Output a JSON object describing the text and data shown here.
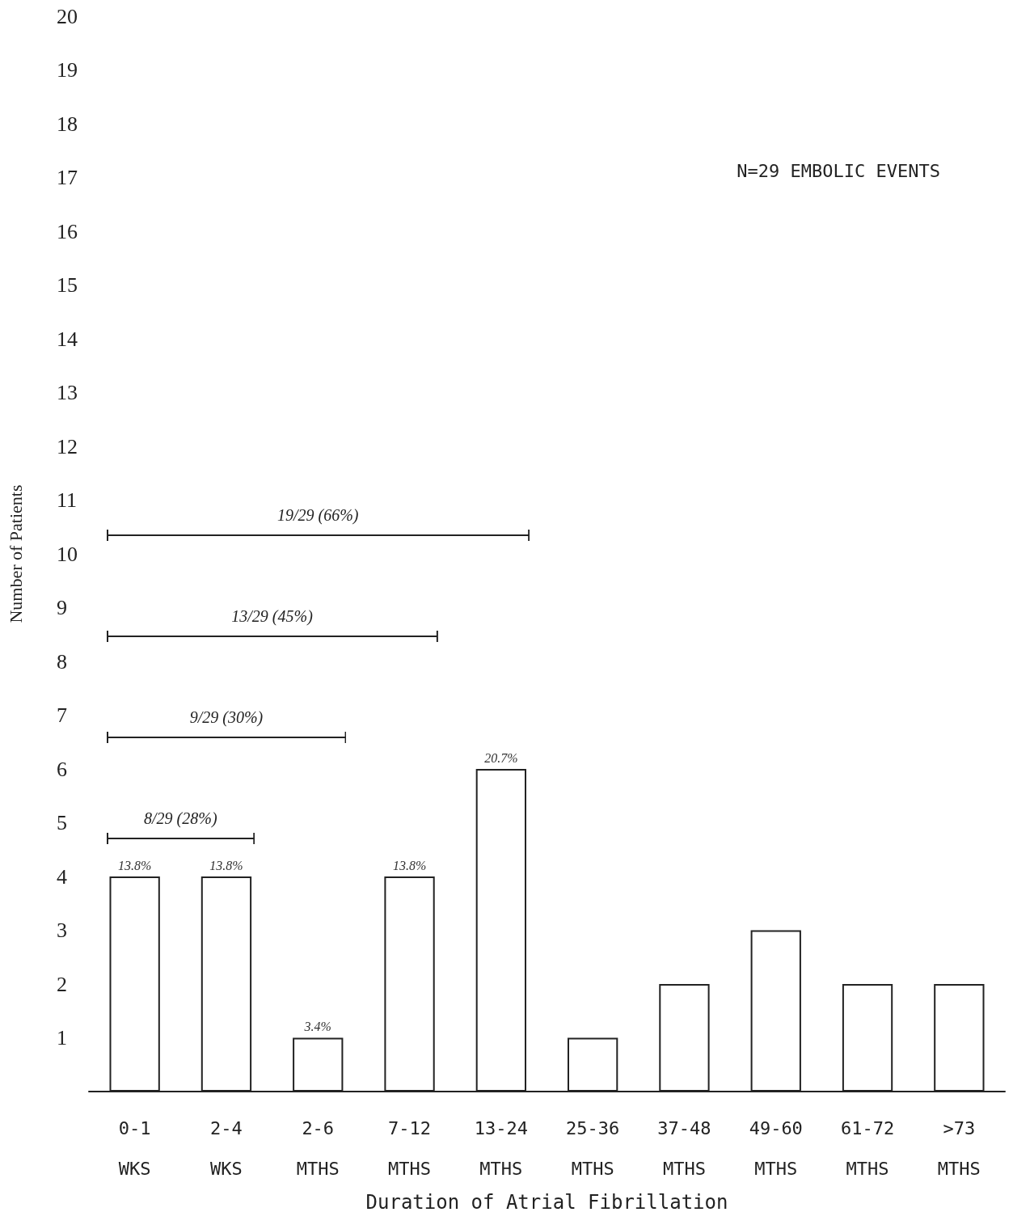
{
  "chart_data": {
    "type": "bar",
    "xlabel": "Duration of Atrial Fibrillation",
    "ylabel": "Number of Patients",
    "categories": [
      "0-1\nWKS",
      "2-4\nWKS",
      "2-6\nMTHS",
      "7-12\nMTHS",
      "13-24\nMTHS",
      "25-36\nMTHS",
      "37-48\nMTHS",
      "49-60\nMTHS",
      "61-72\nMTHS",
      ">73\nMTHS"
    ],
    "values": [
      4,
      4,
      1,
      4,
      6,
      1,
      2,
      3,
      2,
      2
    ],
    "color": "#ffffff",
    "ylim": [
      0,
      20
    ],
    "yticks": [
      1,
      2,
      3,
      4,
      5,
      6,
      7,
      8,
      9,
      10,
      11,
      12,
      13,
      14,
      15,
      16,
      17,
      18,
      19,
      20
    ],
    "grid": false,
    "annotations": [
      "N=29 EMBOLIC EVENTS",
      "8/29 (28%)",
      "9/29 (30%)",
      "13/29 (45%)",
      "19/29 (66%)",
      {
        "text": "13.8%",
        "x": "0-1\nWKS",
        "y": 4
      },
      {
        "text": "13.8%",
        "x": "2-4\nWKS",
        "y": 4
      },
      {
        "text": "3.4%",
        "x": "2-6\nMTHS",
        "y": 1
      },
      {
        "text": "13.8%",
        "x": "7-12\nMTHS",
        "y": 4
      },
      {
        "text": "20.7%",
        "x": "13-24\nMTHS",
        "y": 6
      }
    ]
  }
}
